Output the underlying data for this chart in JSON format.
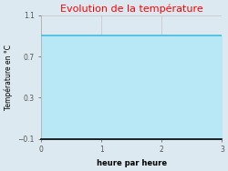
{
  "title": "Evolution de la température",
  "title_color": "#ff0000",
  "xlabel": "heure par heure",
  "ylabel": "Température en °C",
  "xlim": [
    0,
    3
  ],
  "ylim": [
    -0.1,
    1.1
  ],
  "yticks": [
    -0.1,
    0.3,
    0.7,
    1.1
  ],
  "xticks": [
    0,
    1,
    2,
    3
  ],
  "line_y": 0.9,
  "line_color": "#44bbdd",
  "fill_color": "#b8e8f5",
  "background_color": "#dce9f0",
  "plot_bg_color": "#dce9f0",
  "line_width": 1.2,
  "grid_color": "#bbbbbb",
  "title_fontsize": 8,
  "label_fontsize": 6,
  "tick_fontsize": 5.5
}
